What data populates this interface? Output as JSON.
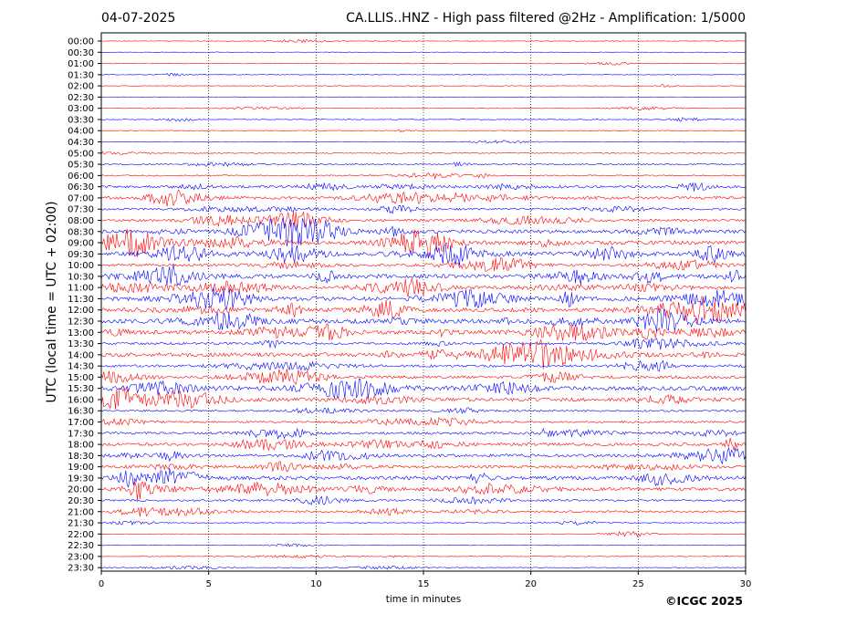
{
  "header": {
    "date": "04-07-2025",
    "title": "CA.LLIS..HNZ - High pass filtered @2Hz - Amplification: 1/5000"
  },
  "copyright": "©ICGC 2025",
  "colors": {
    "red": "#ff0000",
    "blue": "#0000ff",
    "grid": "#000000"
  },
  "chart_data": {
    "type": "line",
    "xlabel": "time in minutes",
    "ylabel": "UTC (local time = UTC + 02:00)",
    "xlim": [
      0,
      30
    ],
    "x_ticks": [
      0,
      5,
      10,
      15,
      20,
      25,
      30
    ],
    "grid": "vertical dotted lines at each x tick",
    "row_labels": [
      "00:00",
      "00:30",
      "01:00",
      "01:30",
      "02:00",
      "02:30",
      "03:00",
      "03:30",
      "04:00",
      "04:30",
      "05:00",
      "05:30",
      "06:00",
      "06:30",
      "07:00",
      "07:30",
      "08:00",
      "08:30",
      "09:00",
      "09:30",
      "10:00",
      "10:30",
      "11:00",
      "11:30",
      "12:00",
      "12:30",
      "13:00",
      "13:30",
      "14:00",
      "14:30",
      "15:00",
      "15:30",
      "16:00",
      "16:30",
      "17:00",
      "17:30",
      "18:00",
      "18:30",
      "19:00",
      "19:30",
      "20:00",
      "20:30",
      "21:00",
      "21:30",
      "22:00",
      "22:30",
      "23:00",
      "23:30"
    ],
    "trace_color_pattern": [
      "red",
      "blue"
    ],
    "noise_level": [
      0.02,
      0.02,
      0.05,
      0.02,
      0.02,
      0.02,
      0.03,
      0.08,
      0.06,
      0.03,
      0.18,
      0.3,
      0.3,
      0.8,
      1.0,
      0.6,
      0.8,
      1.2,
      1.5,
      1.6,
      0.9,
      1.5,
      1.0,
      1.5,
      1.4,
      1.6,
      1.5,
      0.7,
      1.5,
      0.8,
      1.0,
      1.5,
      1.3,
      0.6,
      0.6,
      0.8,
      1.0,
      1.0,
      0.9,
      1.4,
      1.2,
      0.6,
      0.6,
      0.1,
      0.02,
      0.02,
      0.02,
      0.02
    ]
  }
}
